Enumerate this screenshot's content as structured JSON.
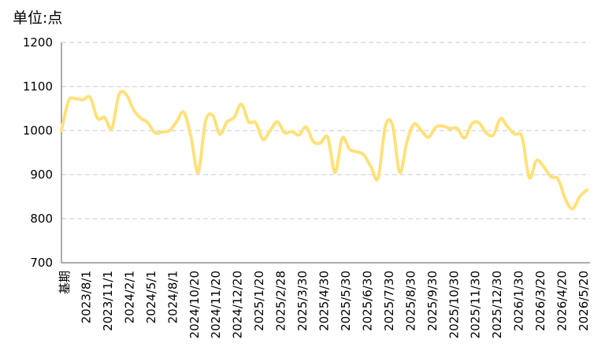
{
  "chart_data": {
    "type": "line",
    "unit_label": "单位:点",
    "ylim": [
      700,
      1200
    ],
    "y_ticks": [
      700,
      800,
      900,
      1000,
      1100,
      1200
    ],
    "grid": "horizontal dashed",
    "x_tick_labels": [
      "基期",
      "2023/8/1",
      "2023/11/1",
      "2024/2/1",
      "2024/5/1",
      "2024/8/1",
      "2024/10/20",
      "2024/11/20",
      "2024/12/20",
      "2025/1/20",
      "2025/2/28",
      "2025/3/30",
      "2025/4/30",
      "2025/5/30",
      "2025/6/30",
      "2025/7/30",
      "2025/8/30",
      "2025/9/30",
      "2025/10/30",
      "2025/11/30",
      "2025/12/30",
      "2026/1/30",
      "2026/3/20",
      "2026/4/20",
      "2026/5/20"
    ],
    "series": [
      {
        "color": "#FFE17A",
        "values": [
          1000,
          1068,
          1072,
          1070,
          1075,
          1028,
          1030,
          1005,
          1082,
          1082,
          1048,
          1028,
          1018,
          995,
          997,
          1000,
          1020,
          1042,
          985,
          905,
          1020,
          1035,
          992,
          1020,
          1030,
          1060,
          1020,
          1018,
          980,
          1000,
          1020,
          995,
          998,
          990,
          1008,
          975,
          972,
          985,
          905,
          983,
          958,
          952,
          945,
          918,
          892,
          1010,
          1012,
          905,
          975,
          1015,
          1000,
          985,
          1008,
          1010,
          1005,
          1005,
          983,
          1015,
          1018,
          995,
          990,
          1027,
          1008,
          992,
          985,
          893,
          932,
          918,
          895,
          890,
          845,
          822,
          850,
          865
        ]
      }
    ]
  }
}
